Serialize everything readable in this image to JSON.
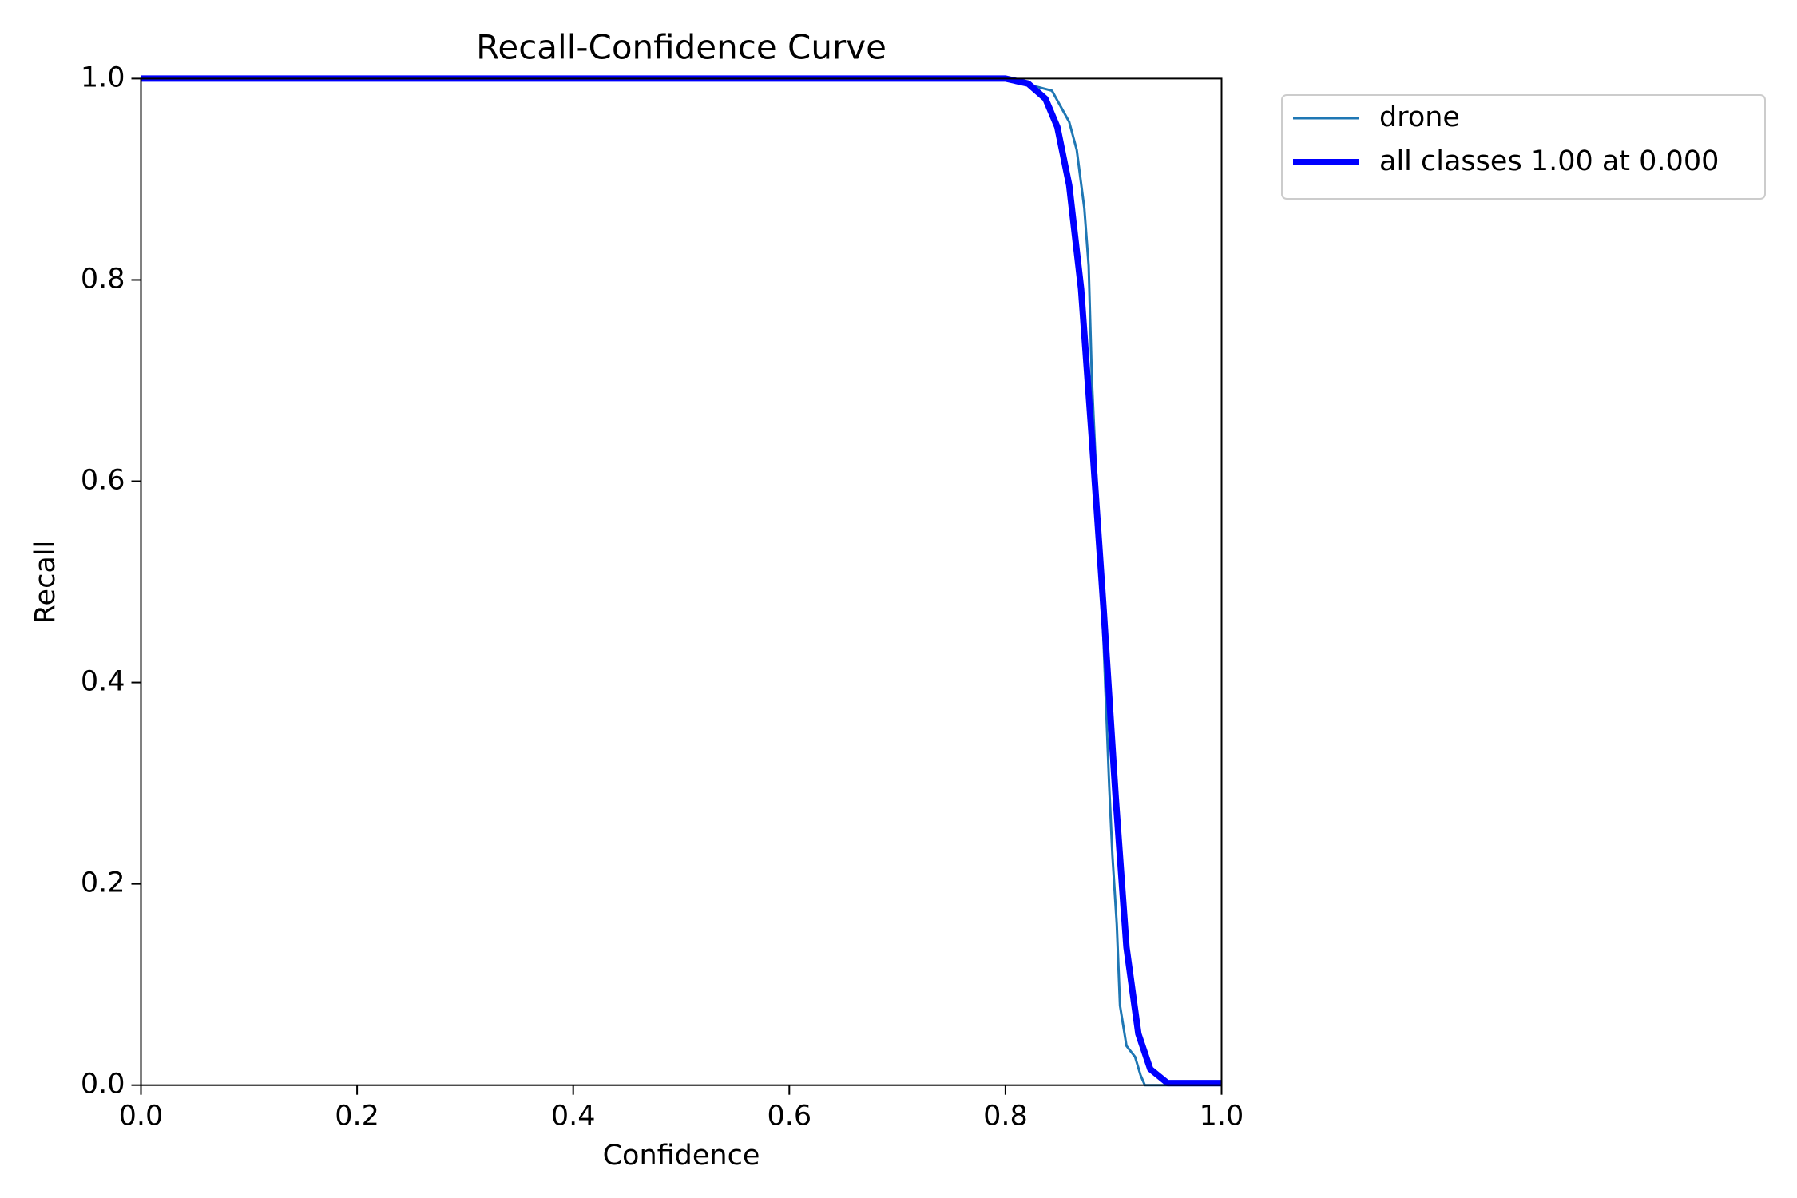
{
  "chart_data": {
    "type": "line",
    "title": "Recall-Confidence Curve",
    "x_label": "Confidence",
    "y_label": "Recall",
    "xlim": [
      0,
      1
    ],
    "ylim": [
      0,
      1
    ],
    "xticks": [
      {
        "value": 0,
        "label": "0.0"
      },
      {
        "value": 0.2,
        "label": "0.2"
      },
      {
        "value": 0.4,
        "label": "0.4"
      },
      {
        "value": 0.6,
        "label": "0.6"
      },
      {
        "value": 0.8,
        "label": "0.8"
      },
      {
        "value": 1,
        "label": "1.0"
      }
    ],
    "yticks": [
      {
        "value": 0,
        "label": "0.0"
      },
      {
        "value": 0.2,
        "label": "0.2"
      },
      {
        "value": 0.4,
        "label": "0.4"
      },
      {
        "value": 0.6,
        "label": "0.6"
      },
      {
        "value": 0.8,
        "label": "0.8"
      },
      {
        "value": 1,
        "label": "1.0"
      }
    ],
    "legend": "upper-right-outside",
    "series": [
      {
        "name": "drone",
        "color": "#1f77b4",
        "line_width": 3,
        "x": [
          0,
          0.8,
          0.843,
          0.859,
          0.866,
          0.873,
          0.877,
          0.88,
          0.886,
          0.891,
          0.896,
          0.899,
          0.903,
          0.906,
          0.912,
          0.92,
          0.925,
          0.929,
          1.0
        ],
        "values": [
          1.0,
          1.0,
          0.988,
          0.957,
          0.929,
          0.871,
          0.814,
          0.7,
          0.56,
          0.435,
          0.297,
          0.228,
          0.16,
          0.079,
          0.039,
          0.028,
          0.01,
          0,
          0
        ]
      },
      {
        "name": "all classes 1.00 at 0.000",
        "color": "#0000ff",
        "line_width": 8,
        "x": [
          0,
          0.8,
          0.821,
          0.837,
          0.848,
          0.859,
          0.87,
          0.88,
          0.891,
          0.902,
          0.912,
          0.923,
          0.934,
          0.95,
          1.0
        ],
        "values": [
          1.0,
          1.0,
          0.995,
          0.98,
          0.952,
          0.894,
          0.791,
          0.642,
          0.47,
          0.286,
          0.137,
          0.051,
          0.016,
          0.002,
          0.002
        ]
      }
    ]
  }
}
